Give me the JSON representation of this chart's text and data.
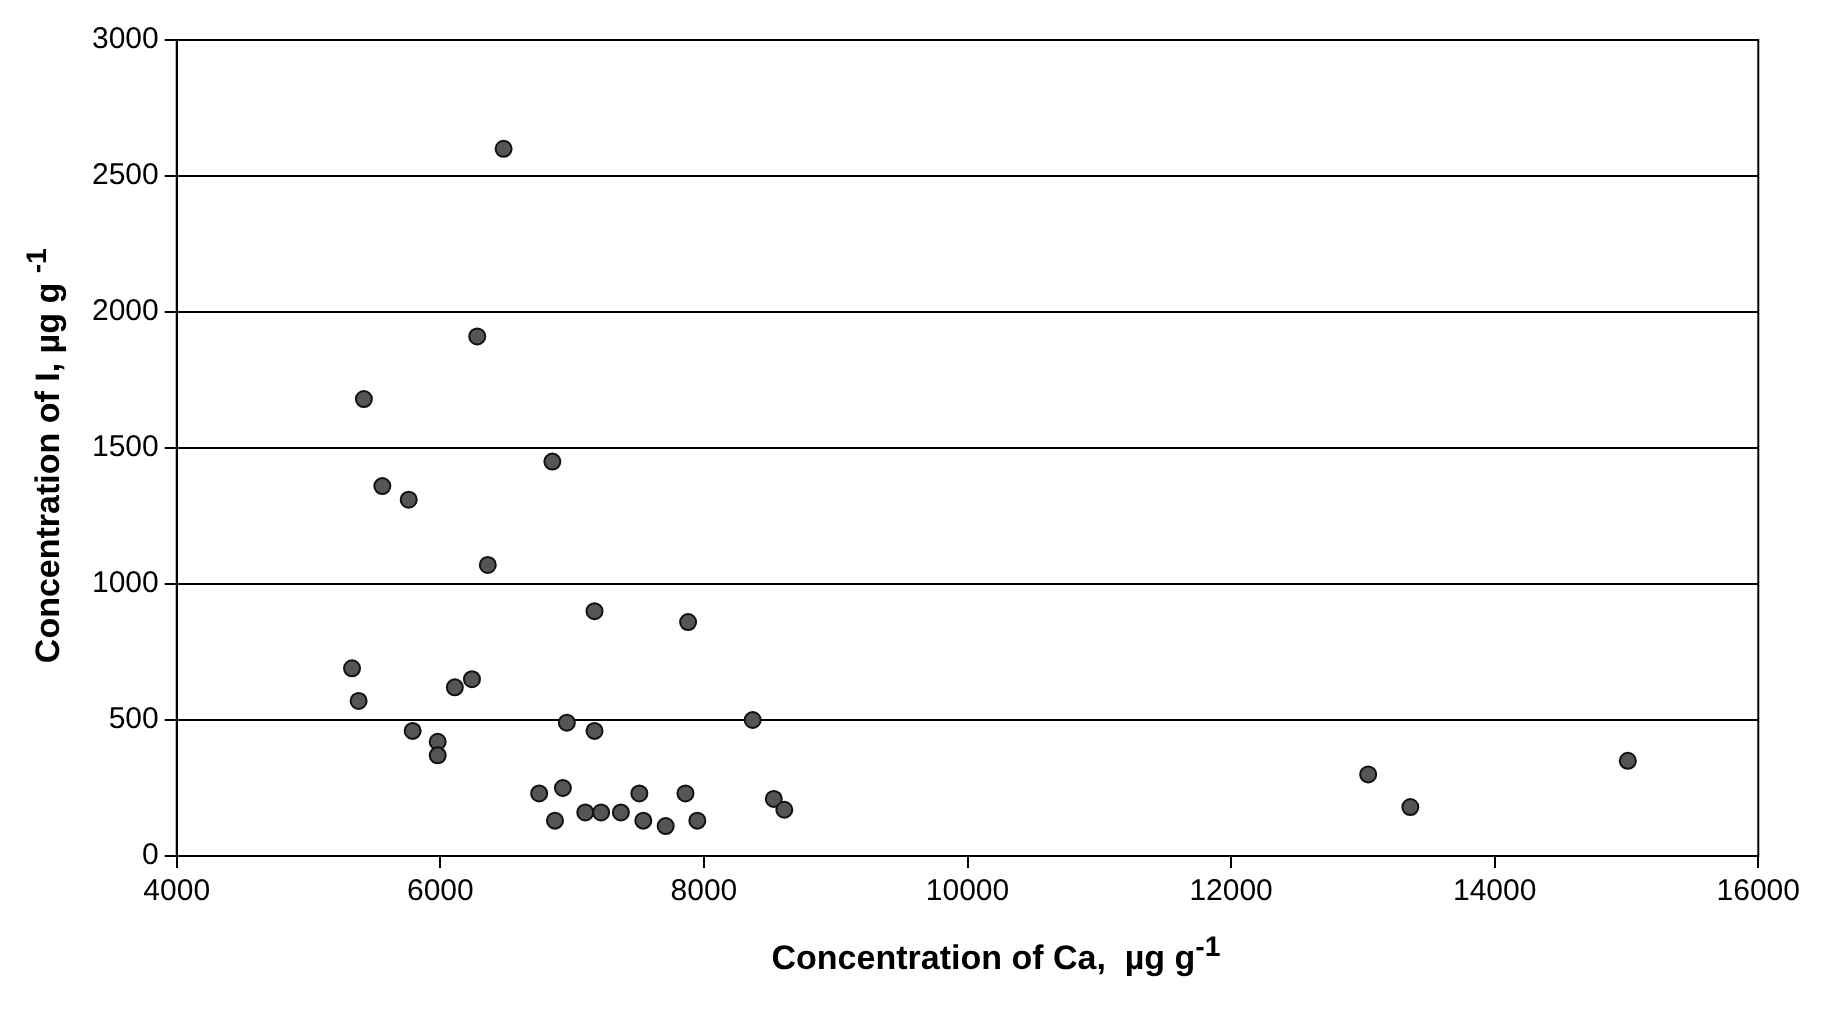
{
  "chart_data": {
    "type": "scatter",
    "xlabel": "Concentration of Ca,  µg g$^{-1}$",
    "ylabel": "Concentration of I, µg g $^{-1}$",
    "x": [
      6480,
      6280,
      5420,
      6850,
      5560,
      5760,
      6360,
      7170,
      7880,
      5330,
      5380,
      6110,
      6240,
      5790,
      5980,
      5980,
      6960,
      7170,
      8370,
      6750,
      6930,
      6870,
      7100,
      7220,
      7370,
      7510,
      7540,
      7710,
      7860,
      7950,
      8530,
      8610,
      13040,
      13360,
      15010
    ],
    "values": [
      2600,
      1910,
      1680,
      1450,
      1360,
      1310,
      1070,
      900,
      860,
      690,
      570,
      620,
      650,
      460,
      420,
      370,
      490,
      460,
      500,
      230,
      250,
      130,
      160,
      160,
      160,
      230,
      130,
      110,
      230,
      130,
      210,
      170,
      300,
      180,
      350
    ],
    "color": "#555555",
    "marker": "circle",
    "grid": "y",
    "legend": false,
    "xlim": [
      4000,
      16000
    ],
    "xticks": [
      4000,
      6000,
      8000,
      10000,
      12000,
      14000,
      16000
    ],
    "ylim": [
      0,
      3000
    ],
    "yticks": [
      0,
      500,
      1000,
      1500,
      2000,
      2500,
      3000
    ]
  }
}
